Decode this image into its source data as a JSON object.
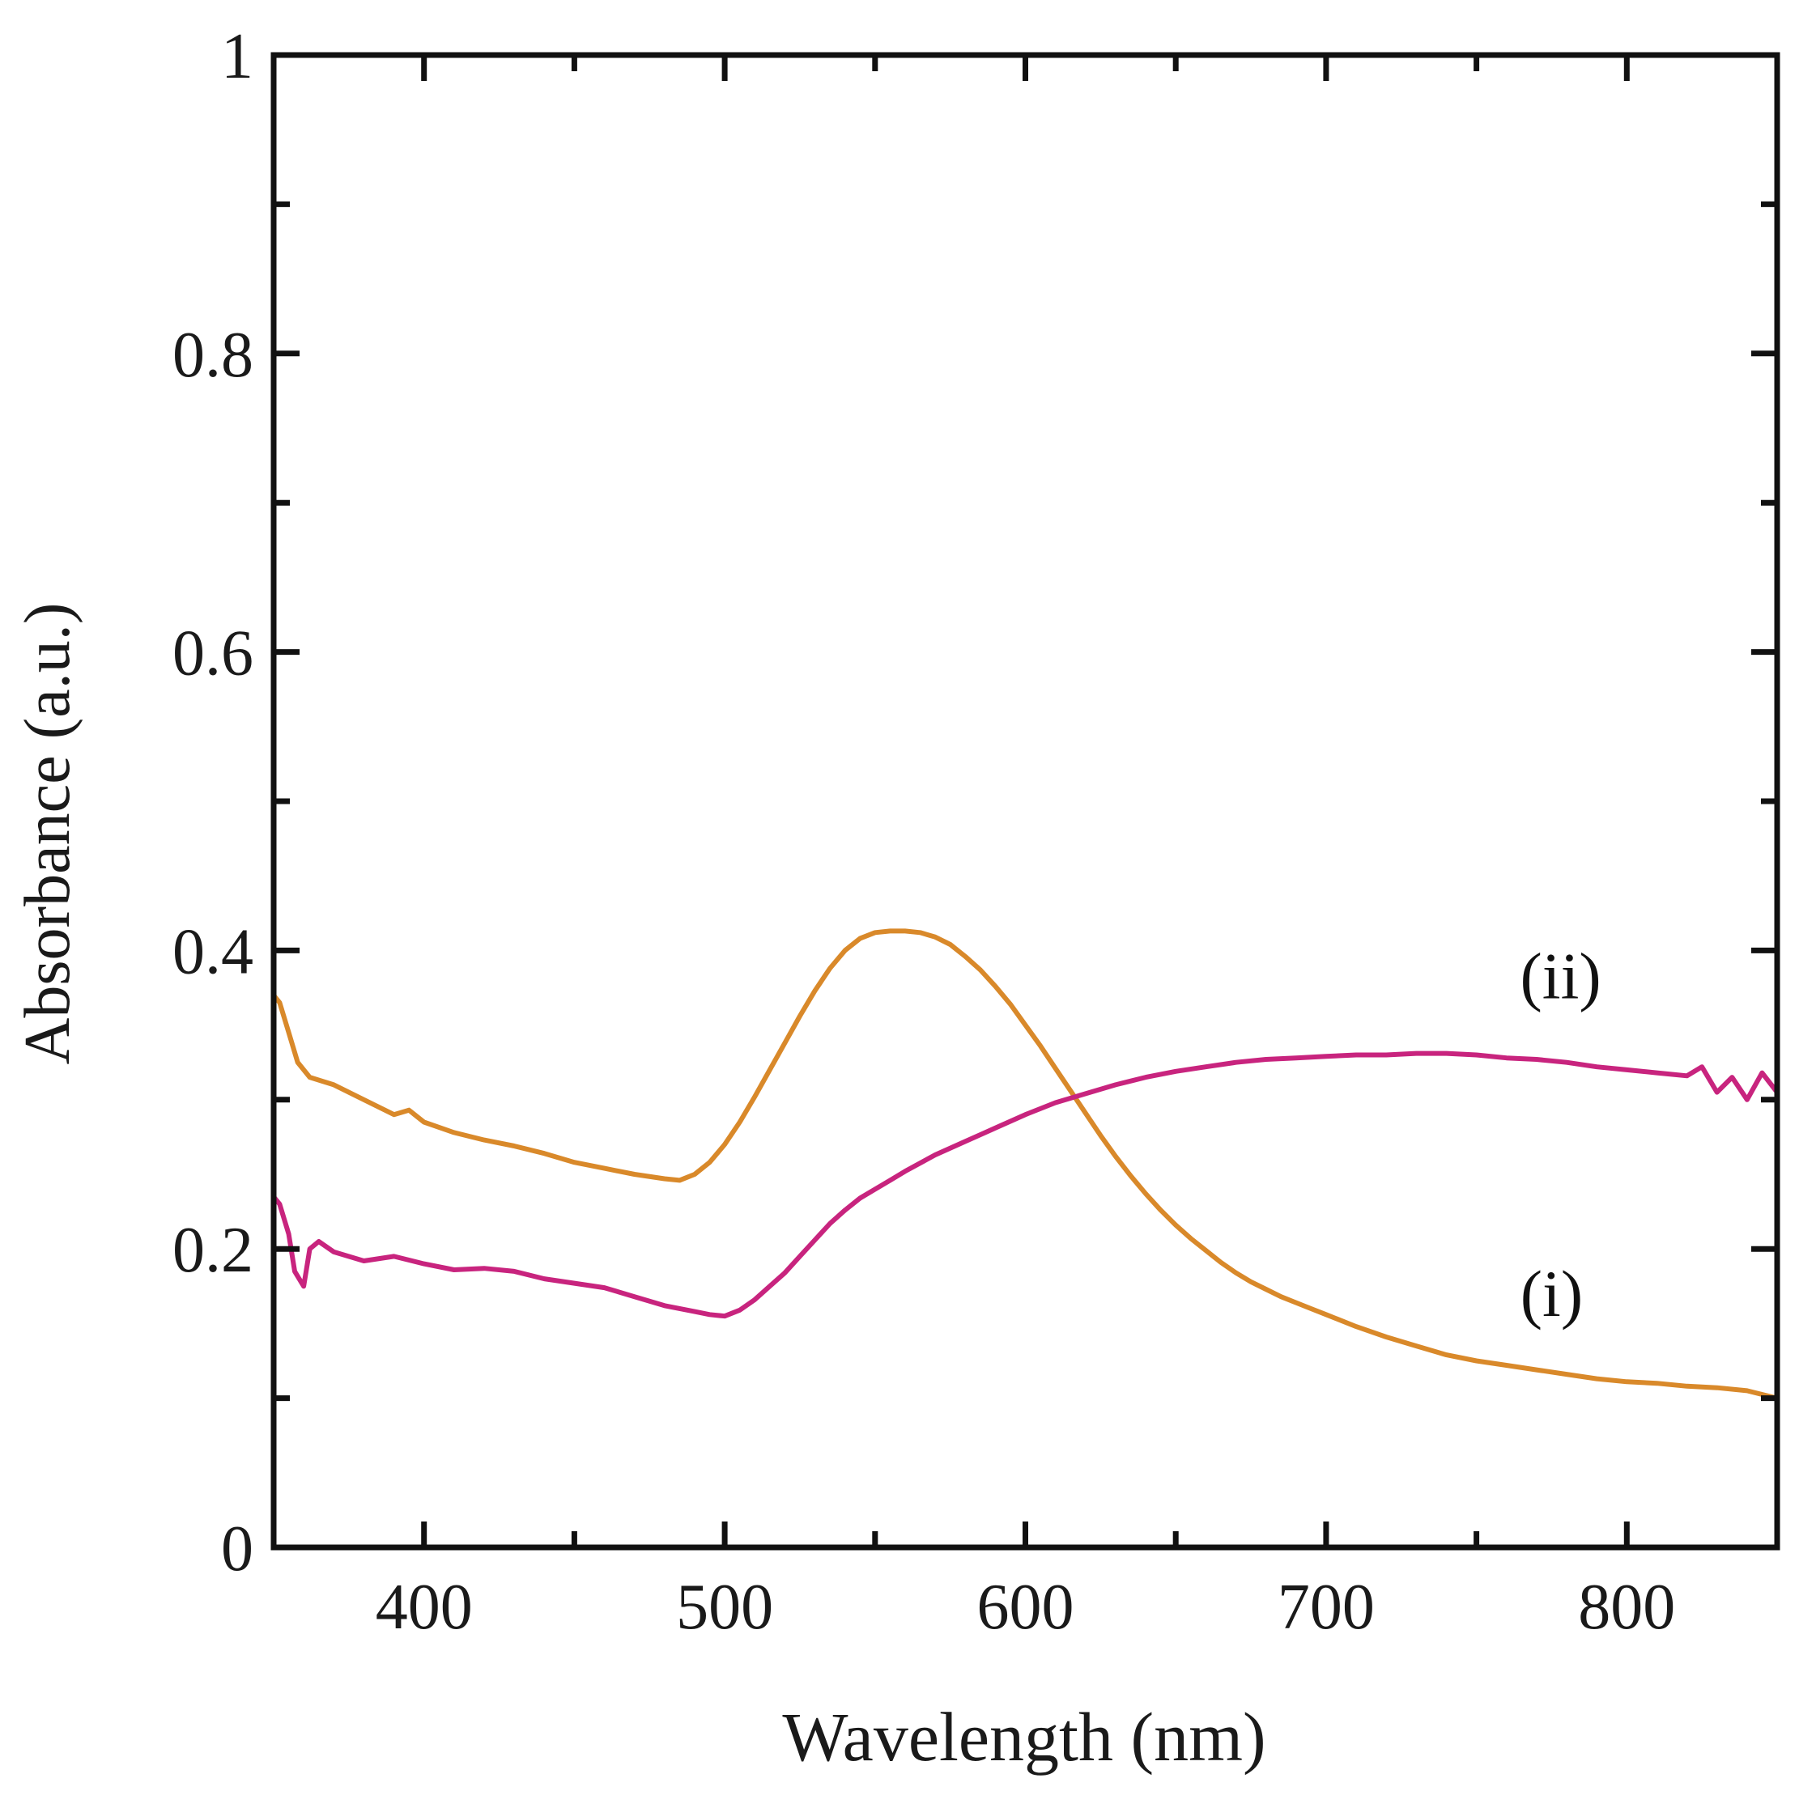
{
  "chart_data": {
    "type": "line",
    "title": "",
    "xlabel": "Wavelength (nm)",
    "ylabel": "Absorbance (a.u.)",
    "xlim": [
      350,
      850
    ],
    "ylim": [
      0,
      1
    ],
    "x_ticks": [
      {
        "value": 400,
        "label": "400"
      },
      {
        "value": 500,
        "label": "500"
      },
      {
        "value": 600,
        "label": "600"
      },
      {
        "value": 700,
        "label": "700"
      },
      {
        "value": 800,
        "label": "800"
      }
    ],
    "x_minor_ticks": [
      450,
      550,
      650,
      750
    ],
    "y_ticks": [
      {
        "value": 0,
        "label": "0"
      },
      {
        "value": 0.2,
        "label": "0.2"
      },
      {
        "value": 0.4,
        "label": "0.4"
      },
      {
        "value": 0.6,
        "label": "0.6"
      },
      {
        "value": 0.8,
        "label": "0.8"
      },
      {
        "value": 1,
        "label": "1"
      }
    ],
    "y_minor_ticks": [
      0.1,
      0.3,
      0.5,
      0.7,
      0.9
    ],
    "series": [
      {
        "name": "(i)",
        "color": "#d9892a",
        "label_at": [
          775,
          0.155
        ],
        "x": [
          350,
          352,
          355,
          358,
          362,
          370,
          380,
          390,
          395,
          400,
          410,
          420,
          430,
          440,
          450,
          460,
          470,
          480,
          485,
          490,
          495,
          500,
          505,
          510,
          515,
          520,
          525,
          530,
          535,
          540,
          545,
          550,
          555,
          560,
          565,
          570,
          575,
          580,
          585,
          590,
          595,
          600,
          605,
          610,
          615,
          620,
          625,
          630,
          635,
          640,
          645,
          650,
          655,
          660,
          665,
          670,
          675,
          680,
          685,
          690,
          695,
          700,
          710,
          720,
          730,
          740,
          750,
          760,
          770,
          780,
          790,
          800,
          810,
          820,
          830,
          840,
          850
        ],
        "values": [
          0.37,
          0.365,
          0.345,
          0.325,
          0.315,
          0.31,
          0.3,
          0.29,
          0.293,
          0.285,
          0.278,
          0.273,
          0.269,
          0.264,
          0.258,
          0.254,
          0.25,
          0.247,
          0.246,
          0.25,
          0.258,
          0.27,
          0.285,
          0.302,
          0.32,
          0.338,
          0.356,
          0.373,
          0.388,
          0.4,
          0.408,
          0.412,
          0.413,
          0.413,
          0.412,
          0.409,
          0.404,
          0.396,
          0.387,
          0.376,
          0.364,
          0.35,
          0.336,
          0.321,
          0.306,
          0.291,
          0.276,
          0.262,
          0.249,
          0.237,
          0.226,
          0.216,
          0.207,
          0.199,
          0.191,
          0.184,
          0.178,
          0.173,
          0.168,
          0.164,
          0.16,
          0.156,
          0.148,
          0.141,
          0.135,
          0.129,
          0.125,
          0.122,
          0.119,
          0.116,
          0.113,
          0.111,
          0.11,
          0.108,
          0.107,
          0.105,
          0.1
        ]
      },
      {
        "name": "(ii)",
        "color": "#c8247e",
        "label_at": [
          778,
          0.368
        ],
        "x": [
          350,
          352,
          355,
          357,
          360,
          362,
          365,
          370,
          380,
          390,
          400,
          410,
          420,
          430,
          440,
          450,
          460,
          470,
          480,
          490,
          495,
          500,
          505,
          510,
          515,
          520,
          525,
          530,
          535,
          540,
          545,
          550,
          555,
          560,
          570,
          580,
          590,
          600,
          610,
          620,
          630,
          640,
          650,
          660,
          670,
          680,
          690,
          700,
          710,
          720,
          730,
          740,
          750,
          760,
          770,
          780,
          790,
          800,
          810,
          820,
          825,
          830,
          835,
          840,
          845,
          850
        ],
        "values": [
          0.235,
          0.23,
          0.21,
          0.185,
          0.175,
          0.2,
          0.205,
          0.198,
          0.192,
          0.195,
          0.19,
          0.186,
          0.187,
          0.185,
          0.18,
          0.177,
          0.174,
          0.168,
          0.162,
          0.158,
          0.156,
          0.155,
          0.159,
          0.166,
          0.175,
          0.184,
          0.195,
          0.206,
          0.217,
          0.226,
          0.234,
          0.24,
          0.246,
          0.252,
          0.263,
          0.272,
          0.281,
          0.29,
          0.298,
          0.304,
          0.31,
          0.315,
          0.319,
          0.322,
          0.325,
          0.327,
          0.328,
          0.329,
          0.33,
          0.33,
          0.331,
          0.331,
          0.33,
          0.328,
          0.327,
          0.325,
          0.322,
          0.32,
          0.318,
          0.316,
          0.322,
          0.305,
          0.315,
          0.3,
          0.318,
          0.305
        ]
      }
    ]
  }
}
